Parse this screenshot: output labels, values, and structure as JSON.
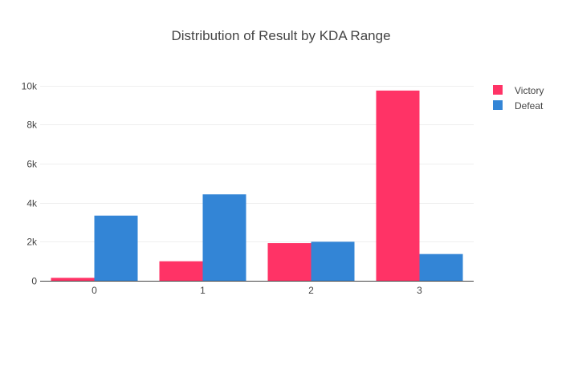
{
  "chart_data": {
    "type": "bar",
    "title": "Distribution of Result by KDA Range",
    "xlabel": "",
    "ylabel": "",
    "categories": [
      "0",
      "1",
      "2",
      "3"
    ],
    "series": [
      {
        "name": "Victory",
        "color": "#FF3366",
        "values": [
          150,
          1000,
          1930,
          9750
        ]
      },
      {
        "name": "Defeat",
        "color": "#3385D6",
        "values": [
          3340,
          4430,
          2000,
          1370
        ]
      }
    ],
    "ylim": [
      0,
      10280
    ],
    "yticks": [
      0,
      2000,
      4000,
      6000,
      8000,
      10000
    ],
    "ytick_labels": [
      "0",
      "2k",
      "4k",
      "6k",
      "8k",
      "10k"
    ],
    "grid": true,
    "legend_position": "top-right"
  }
}
